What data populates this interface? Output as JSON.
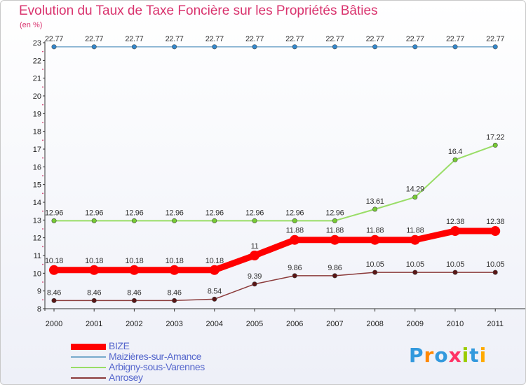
{
  "title": "Evolution du Taux de Taxe Foncière sur les Propriétés Bâties",
  "unit_label": "(en %)",
  "logo": "Proxiti",
  "chart_data": {
    "type": "line",
    "title": "Evolution du Taux de Taxe Foncière sur les Propriétés Bâties",
    "ylabel": "(en %)",
    "xlabel": "",
    "ylim": [
      8,
      23
    ],
    "yticks": [
      "8",
      "9",
      "10",
      "11",
      "12",
      "13",
      "14",
      "15",
      "16",
      "17",
      "18",
      "19",
      "20",
      "21",
      "22",
      "23"
    ],
    "categories": [
      "2000",
      "2001",
      "2002",
      "2003",
      "2004",
      "2005",
      "2006",
      "2007",
      "2008",
      "2009",
      "2010",
      "2011"
    ],
    "series": [
      {
        "name": "BIZE",
        "color": "#ff0000",
        "width": 9,
        "values": [
          10.18,
          10.18,
          10.18,
          10.18,
          10.18,
          11,
          11.88,
          11.88,
          11.88,
          11.88,
          12.38,
          12.38
        ],
        "labels": [
          "10.18",
          "10.18",
          "10.18",
          "10.18",
          "10.18",
          "11",
          "11.88",
          "11.88",
          "11.88",
          "11.88",
          "12.38",
          "12.38"
        ]
      },
      {
        "name": "Maizières-sur-Amance",
        "color": "#77aacc",
        "marker": "#3388cc",
        "width": 1.5,
        "values": [
          22.77,
          22.77,
          22.77,
          22.77,
          22.77,
          22.77,
          22.77,
          22.77,
          22.77,
          22.77,
          22.77,
          22.77
        ],
        "labels": [
          "22.77",
          "22.77",
          "22.77",
          "22.77",
          "22.77",
          "22.77",
          "22.77",
          "22.77",
          "22.77",
          "22.77",
          "22.77",
          "22.77"
        ]
      },
      {
        "name": "Arbigny-sous-Varennes",
        "color": "#99dd66",
        "marker": "#77cc33",
        "width": 2,
        "values": [
          12.96,
          12.96,
          12.96,
          12.96,
          12.96,
          12.96,
          12.96,
          12.96,
          13.61,
          14.29,
          16.4,
          17.22
        ],
        "labels": [
          "12.96",
          "12.96",
          "12.96",
          "12.96",
          "12.96",
          "12.96",
          "12.96",
          "12.96",
          "13.61",
          "14.29",
          "16.4",
          "17.22"
        ]
      },
      {
        "name": "Anrosey",
        "color": "#8b3a3a",
        "marker": "#5a1515",
        "width": 1.5,
        "values": [
          8.46,
          8.46,
          8.46,
          8.46,
          8.54,
          9.39,
          9.86,
          9.86,
          10.05,
          10.05,
          10.05,
          10.05
        ],
        "labels": [
          "8.46",
          "8.46",
          "8.46",
          "8.46",
          "8.54",
          "9.39",
          "9.86",
          "9.86",
          "10.05",
          "10.05",
          "10.05",
          "10.05"
        ]
      }
    ],
    "legend": "bottom-left"
  }
}
